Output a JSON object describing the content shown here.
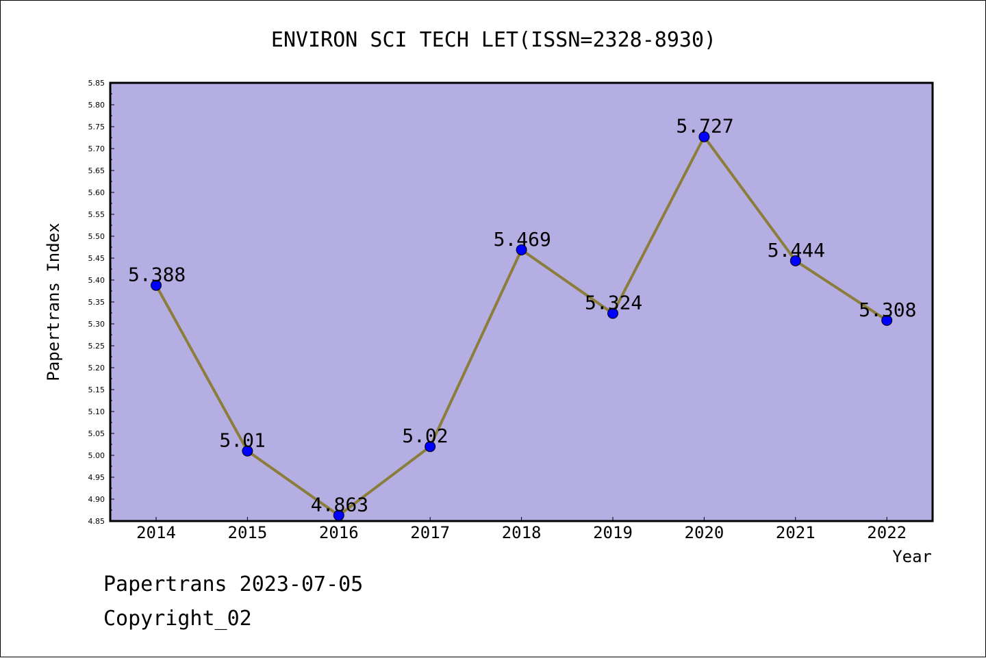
{
  "chart_data": {
    "type": "line",
    "title": "ENVIRON SCI TECH LET(ISSN=2328-8930)",
    "xlabel": "Year",
    "ylabel": "Papertrans Index",
    "categories": [
      "2014",
      "2015",
      "2016",
      "2017",
      "2018",
      "2019",
      "2020",
      "2021",
      "2022"
    ],
    "series": [
      {
        "values": [
          5.388,
          5.01,
          4.863,
          5.02,
          5.469,
          5.324,
          5.727,
          5.444,
          5.308
        ],
        "data_labels": [
          "5.388",
          "5.01",
          "4.863",
          "5.02",
          "5.469",
          "5.324",
          "5.727",
          "5.444",
          "5.308"
        ]
      }
    ],
    "ylim": [
      4.85,
      5.85
    ],
    "yticks": [
      "4.85",
      "4.90",
      "4.95",
      "5.00",
      "5.05",
      "5.10",
      "5.15",
      "5.20",
      "5.25",
      "5.30",
      "5.35",
      "5.40",
      "5.45",
      "5.50",
      "5.55",
      "5.60",
      "5.65",
      "5.70",
      "5.75",
      "5.80",
      "5.85"
    ],
    "grid": false,
    "colors": {
      "plot_background": "#b5aee2",
      "line": "#8b7d3a",
      "marker": "#0000ff"
    }
  },
  "footer": {
    "line1": "Papertrans 2023-07-05",
    "line2": "Copyright_02"
  }
}
